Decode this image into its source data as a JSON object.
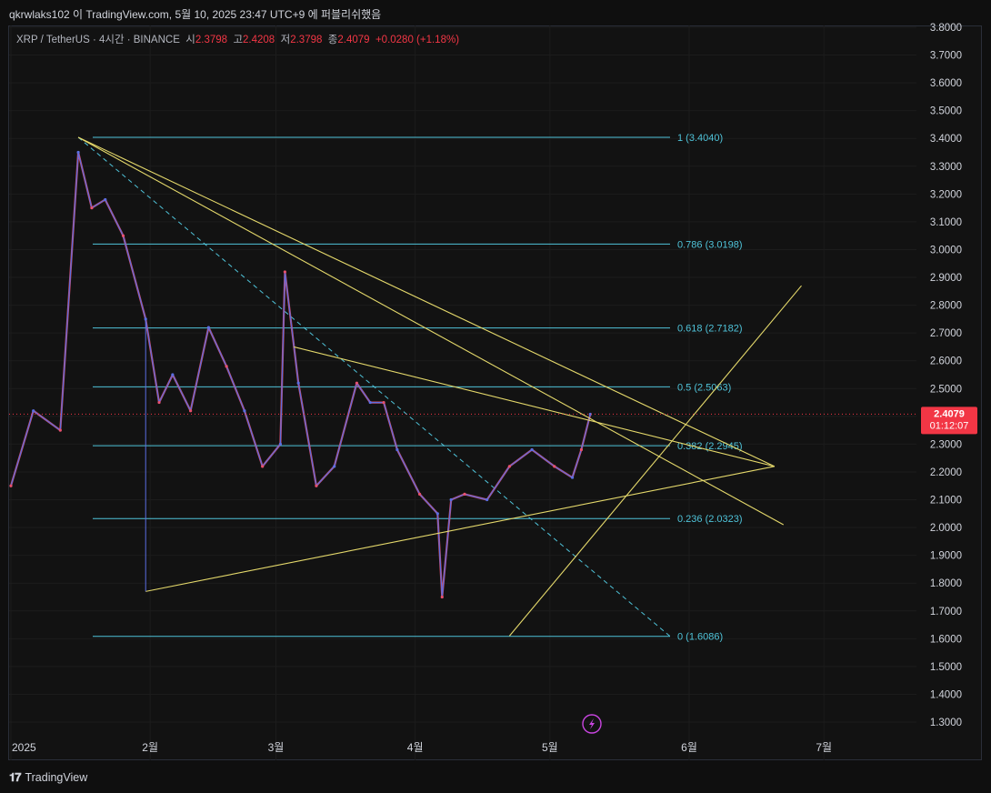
{
  "header": {
    "text": "qkrwlaks102 이 TradingView.com, 5월 10, 2025 23:47 UTC+9 에 퍼블리쉬했음"
  },
  "legend": {
    "symbol": "XRP / TetherUS · 4시간 · BINANCE",
    "open_label": "시",
    "open": "2.3798",
    "high_label": "고",
    "high": "2.4208",
    "low_label": "저",
    "low": "2.3798",
    "close_label": "종",
    "close": "2.4079",
    "change": "+0.0280 (+1.18%)"
  },
  "price_tag": {
    "price": "2.4079",
    "countdown": "01:12:07",
    "color": "#f23645"
  },
  "footer": {
    "brand": "TradingView"
  },
  "colors": {
    "candle_up": "#5b6ee1",
    "candle_down": "#e8506e",
    "fib": "#4fc3d9",
    "trendline": "#e5d96b",
    "grid": "#1c1c1c",
    "current_price": "#f23645",
    "accent_icon": "#c945e0"
  },
  "icons": {
    "lightning": "lightning-bolt-icon"
  },
  "chart_data": {
    "type": "line",
    "title": "",
    "ylim": [
      1.25,
      3.82
    ],
    "y_ticks": [
      "3.8000",
      "3.7000",
      "3.6000",
      "3.5000",
      "3.4000",
      "3.3000",
      "3.2000",
      "3.1000",
      "3.0000",
      "2.9000",
      "2.8000",
      "2.7000",
      "2.6000",
      "2.5000",
      "2.4000",
      "2.3000",
      "2.2000",
      "2.1000",
      "2.0000",
      "1.9000",
      "1.8000",
      "1.7000",
      "1.6000",
      "1.5000",
      "1.4000",
      "1.3000"
    ],
    "x_ticks": [
      "2025",
      "2월",
      "3월",
      "4월",
      "5월",
      "6월",
      "7월"
    ],
    "fib_levels": [
      {
        "label": "1 (3.4040)",
        "value": 3.404
      },
      {
        "label": "0.786 (3.0198)",
        "value": 3.0198
      },
      {
        "label": "0.618 (2.7182)",
        "value": 2.7182
      },
      {
        "label": "0.5 (2.5063)",
        "value": 2.5063
      },
      {
        "label": "0.382 (2.2945)",
        "value": 2.2945
      },
      {
        "label": "0.236 (2.0323)",
        "value": 2.0323
      },
      {
        "label": "0 (1.6086)",
        "value": 1.6086
      }
    ],
    "series": [
      {
        "x": [
          "2025-01-01",
          "2025-01-06",
          "2025-01-12",
          "2025-01-16",
          "2025-01-19",
          "2025-01-22",
          "2025-01-26",
          "2025-01-31",
          "2025-02-03",
          "2025-02-06",
          "2025-02-10",
          "2025-02-14",
          "2025-02-18",
          "2025-02-22",
          "2025-02-26",
          "2025-03-02",
          "2025-03-03",
          "2025-03-06",
          "2025-03-10",
          "2025-03-14",
          "2025-03-19",
          "2025-03-22",
          "2025-03-25",
          "2025-03-28",
          "2025-04-02",
          "2025-04-06",
          "2025-04-07",
          "2025-04-09",
          "2025-04-12",
          "2025-04-17",
          "2025-04-22",
          "2025-04-27",
          "2025-05-02",
          "2025-05-06",
          "2025-05-08",
          "2025-05-10"
        ],
        "values": [
          2.15,
          2.42,
          2.35,
          3.35,
          3.15,
          3.18,
          3.05,
          2.75,
          2.45,
          2.55,
          2.42,
          2.72,
          2.58,
          2.42,
          2.22,
          2.3,
          2.92,
          2.52,
          2.15,
          2.22,
          2.52,
          2.45,
          2.45,
          2.28,
          2.12,
          2.05,
          1.75,
          2.1,
          2.12,
          2.1,
          2.22,
          2.28,
          2.22,
          2.18,
          2.28,
          2.4079
        ]
      }
    ],
    "annotations": {
      "trendlines": "descending resistance from 3.40 high, secondary descending line, ascending support lines forming a triangle",
      "current_price": 2.4079
    }
  }
}
